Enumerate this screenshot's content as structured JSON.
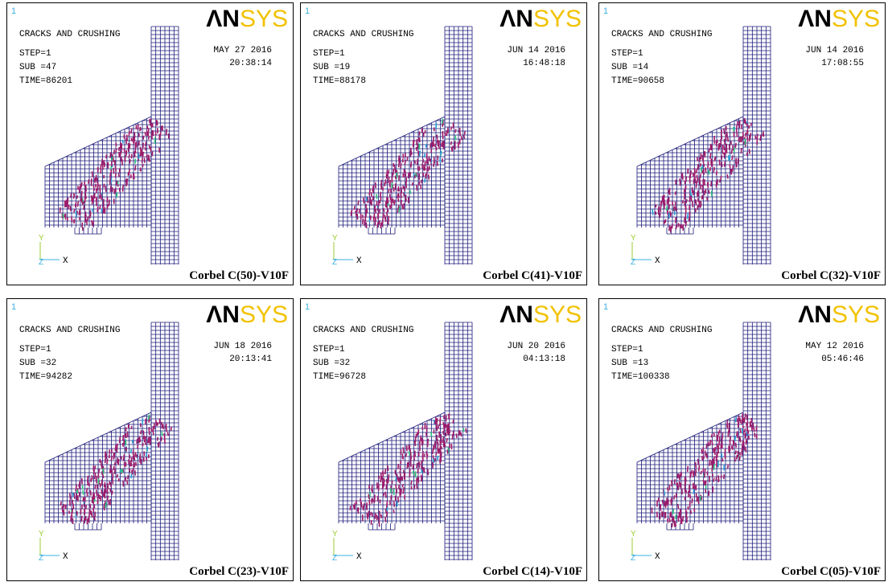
{
  "panels": [
    {
      "index": "1",
      "title": "CRACKS AND CRUSHING",
      "step": "STEP=1",
      "sub": "SUB =47",
      "time": "TIME=86201",
      "date": "MAY 27 2016",
      "clock": "20:38:14",
      "logo_dark": "ΛN",
      "logo_light": "SYS",
      "axis_y": "Y",
      "axis_z": "Z",
      "axis_x": "X",
      "caption": "Corbel C(50)-V10F"
    },
    {
      "index": "1",
      "title": "CRACKS AND CRUSHING",
      "step": "STEP=1",
      "sub": "SUB =19",
      "time": "TIME=88178",
      "date": "JUN 14 2016",
      "clock": "16:48:18",
      "logo_dark": "ΛN",
      "logo_light": "SYS",
      "axis_y": "Y",
      "axis_z": "Z",
      "axis_x": "X",
      "caption": "Corbel C(41)-V10F"
    },
    {
      "index": "1",
      "title": "CRACKS AND CRUSHING",
      "step": "STEP=1",
      "sub": "SUB =14",
      "time": "TIME=90658",
      "date": "JUN 14 2016",
      "clock": "17:08:55",
      "logo_dark": "ΛN",
      "logo_light": "SYS",
      "axis_y": "Y",
      "axis_z": "Z",
      "axis_x": "X",
      "caption": "Corbel C(32)-V10F"
    },
    {
      "index": "1",
      "title": "CRACKS AND CRUSHING",
      "step": "STEP=1",
      "sub": "SUB =32",
      "time": "TIME=94282",
      "date": "JUN 18 2016",
      "clock": "20:13:41",
      "logo_dark": "ΛN",
      "logo_light": "SYS",
      "axis_y": "Y",
      "axis_z": "Z",
      "axis_x": "X",
      "caption": "Corbel C(23)-V10F"
    },
    {
      "index": "1",
      "title": "CRACKS AND CRUSHING",
      "step": "STEP=1",
      "sub": "SUB =32",
      "time": "TIME=96728",
      "date": "JUN 20 2016",
      "clock": "04:13:18",
      "logo_dark": "ΛN",
      "logo_light": "SYS",
      "axis_y": "Y",
      "axis_z": "Z",
      "axis_x": "X",
      "caption": "Corbel C(14)-V10F"
    },
    {
      "index": "1",
      "title": "CRACKS AND CRUSHING",
      "step": "STEP=1",
      "sub": "SUB =13",
      "time": "TIME=100338",
      "date": "MAY 12 2016",
      "clock": "05:46:46",
      "logo_dark": "ΛN",
      "logo_light": "SYS",
      "axis_y": "Y",
      "axis_z": "Z",
      "axis_x": "X",
      "caption": "Corbel C(05)-V10F"
    }
  ]
}
